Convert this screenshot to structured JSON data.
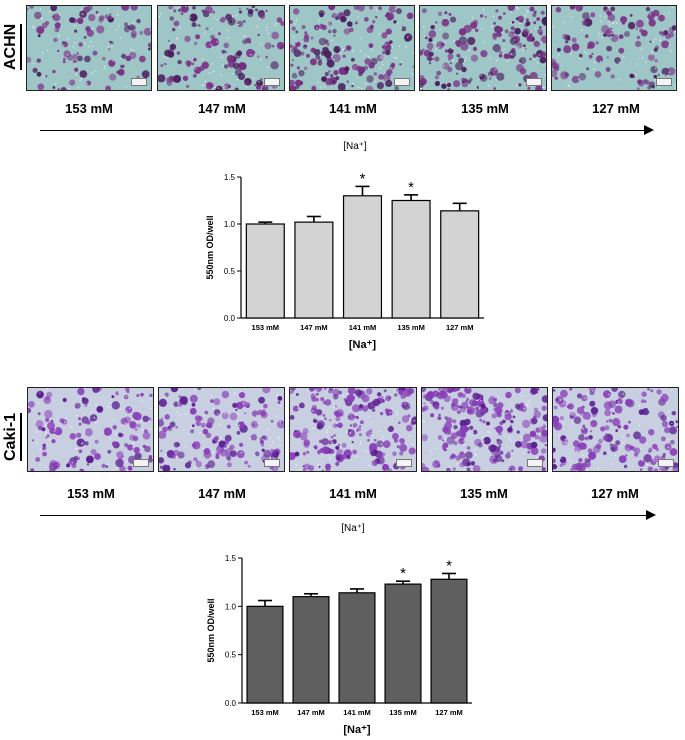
{
  "panels": [
    {
      "cell_line": "ACHN",
      "concentrations": [
        "153 mM",
        "147 mM",
        "141 mM",
        "135 mM",
        "127 mM"
      ],
      "gradient_label": "[Na⁺]",
      "image_palette": {
        "background": "#9fc6c6",
        "stain": "#7a2f86",
        "dark": "#4a1e5e"
      },
      "image_density": [
        0.35,
        0.45,
        0.55,
        0.6,
        0.4
      ],
      "chart_data": {
        "type": "bar",
        "categories": [
          "153 mM",
          "147 mM",
          "141 mM",
          "135 mM",
          "127 mM"
        ],
        "values": [
          1.0,
          1.02,
          1.3,
          1.25,
          1.14
        ],
        "errors": [
          0.02,
          0.06,
          0.1,
          0.06,
          0.08
        ],
        "significant": [
          false,
          false,
          true,
          true,
          false
        ],
        "significance_marker": "*",
        "ylabel": "550nm OD/well",
        "xlabel": "[Na⁺]",
        "ylim": [
          0,
          1.5
        ],
        "yticks": [
          "0.0",
          "0.5",
          "1.0",
          "1.5"
        ],
        "bar_color": "#d3d3d3"
      }
    },
    {
      "cell_line": "Caki-1",
      "concentrations": [
        "153 mM",
        "147 mM",
        "141 mM",
        "135 mM",
        "127 mM"
      ],
      "gradient_label": "[Na⁺]",
      "image_palette": {
        "background": "#c8cfe0",
        "stain": "#8a3fb8",
        "dark": "#5a1f8f"
      },
      "image_density": [
        0.45,
        0.5,
        0.7,
        0.8,
        0.6
      ],
      "chart_data": {
        "type": "bar",
        "categories": [
          "153 mM",
          "147 mM",
          "141 mM",
          "135 mM",
          "127 mM"
        ],
        "values": [
          1.0,
          1.1,
          1.14,
          1.23,
          1.28
        ],
        "errors": [
          0.06,
          0.03,
          0.04,
          0.03,
          0.06
        ],
        "significant": [
          false,
          false,
          false,
          true,
          true
        ],
        "significance_marker": "*",
        "ylabel": "550nm OD/well",
        "xlabel": "[Na⁺]",
        "ylim": [
          0,
          1.5
        ],
        "yticks": [
          "0.0",
          "0.5",
          "1.0",
          "1.5"
        ],
        "bar_color": "#5f5f5f"
      }
    }
  ]
}
